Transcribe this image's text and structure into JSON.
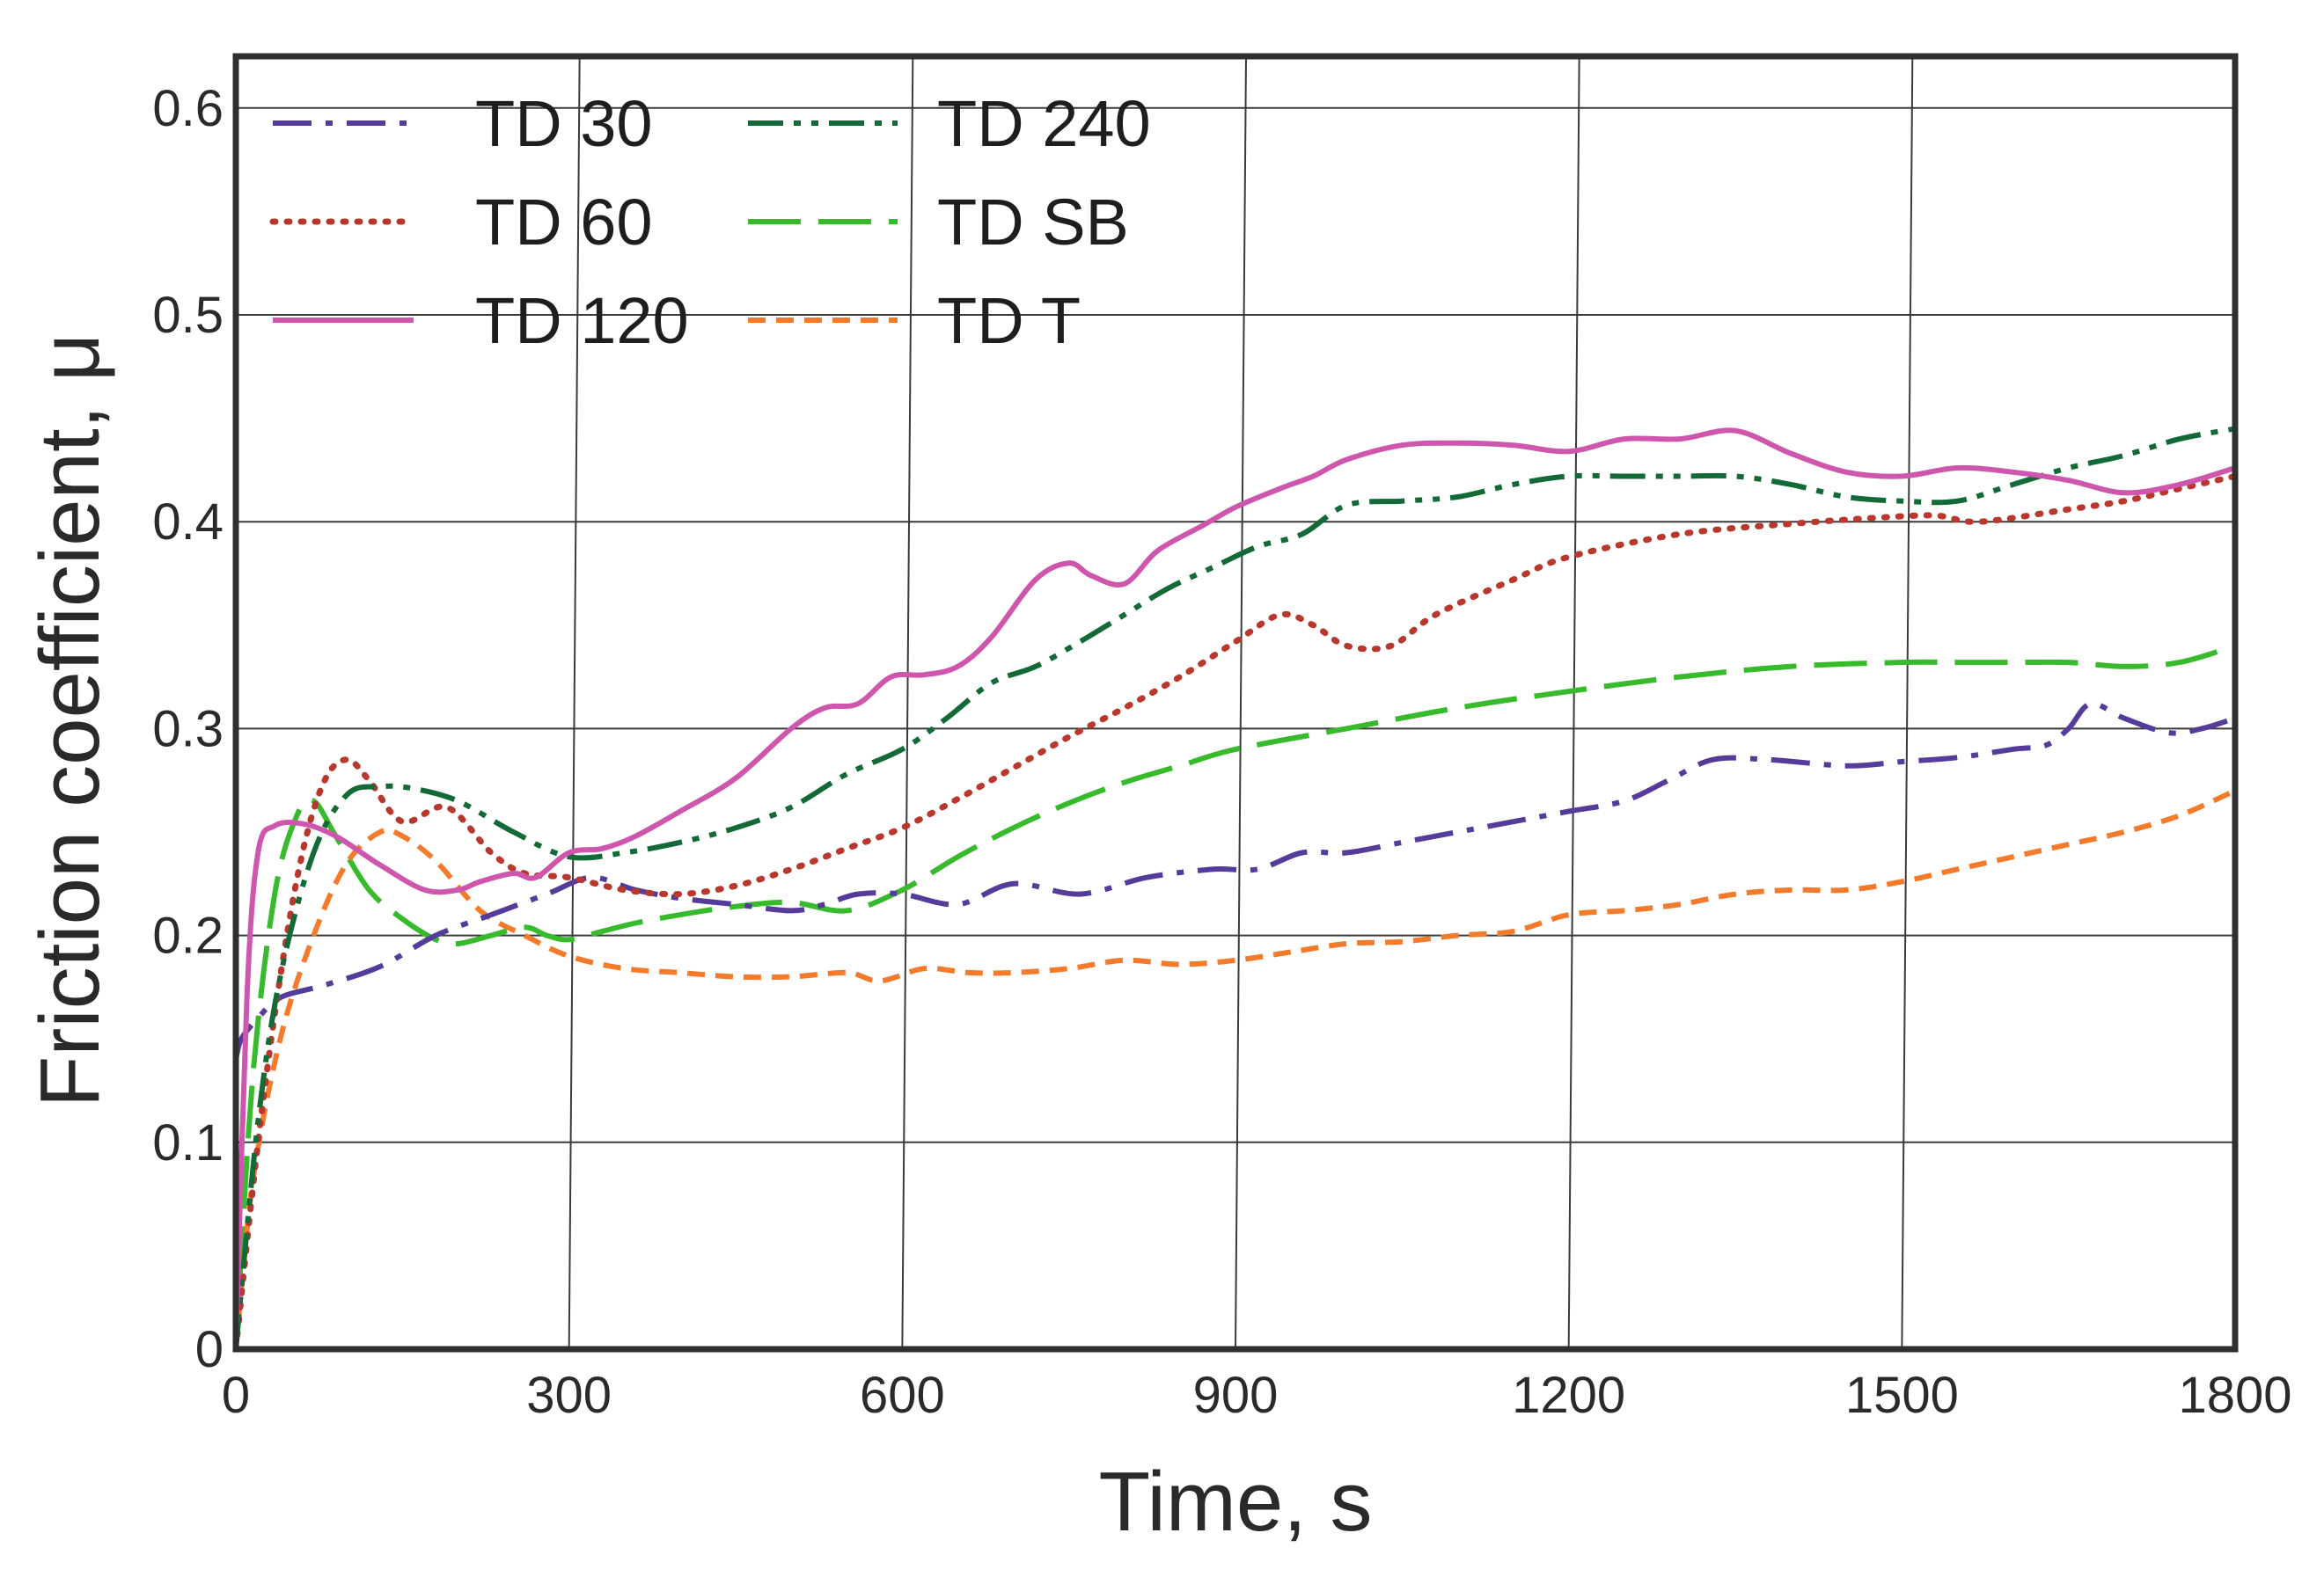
{
  "chart_data": {
    "type": "line",
    "title": "",
    "xlabel": "Time, s",
    "ylabel": "Friction coefficient, μ",
    "xlim": [
      0,
      1800
    ],
    "ylim": [
      0,
      0.625
    ],
    "xticks": [
      0,
      300,
      600,
      900,
      1200,
      1500,
      1800
    ],
    "yticks": [
      0,
      0.1,
      0.2,
      0.3,
      0.4,
      0.5,
      0.6
    ],
    "xtick_labels": [
      "0",
      "300",
      "600",
      "900",
      "1200",
      "1500",
      "1800"
    ],
    "ytick_labels": [
      "0",
      "0.1",
      "0.2",
      "0.3",
      "0.4",
      "0.5",
      "0.6"
    ],
    "grid": true,
    "legend_position": "top-left",
    "series": [
      {
        "name": "TD 30",
        "color": "#553c9a",
        "style": "dashdot",
        "x": [
          0,
          5,
          20,
          40,
          80,
          130,
          180,
          230,
          280,
          320,
          360,
          400,
          450,
          500,
          530,
          560,
          600,
          650,
          700,
          760,
          820,
          880,
          920,
          960,
          1000,
          1050,
          1100,
          1150,
          1200,
          1250,
          1290,
          1330,
          1380,
          1450,
          1500,
          1550,
          1600,
          1630,
          1650,
          1670,
          1700,
          1740,
          1770,
          1800
        ],
        "y": [
          0.14,
          0.15,
          0.16,
          0.17,
          0.176,
          0.185,
          0.2,
          0.21,
          0.22,
          0.228,
          0.222,
          0.218,
          0.215,
          0.212,
          0.215,
          0.22,
          0.22,
          0.215,
          0.225,
          0.22,
          0.228,
          0.232,
          0.232,
          0.24,
          0.24,
          0.245,
          0.25,
          0.255,
          0.26,
          0.265,
          0.275,
          0.285,
          0.285,
          0.282,
          0.284,
          0.286,
          0.29,
          0.292,
          0.3,
          0.312,
          0.305,
          0.298,
          0.3,
          0.305
        ]
      },
      {
        "name": "TD 60",
        "color": "#b8382e",
        "style": "dotted",
        "x": [
          0,
          20,
          40,
          60,
          80,
          100,
          120,
          150,
          190,
          230,
          260,
          300,
          350,
          400,
          450,
          500,
          550,
          600,
          650,
          700,
          750,
          800,
          850,
          900,
          940,
          970,
          1000,
          1040,
          1080,
          1150,
          1200,
          1300,
          1400,
          1480,
          1530,
          1570,
          1650,
          1700,
          1750,
          1800
        ],
        "y": [
          0,
          0.1,
          0.18,
          0.24,
          0.275,
          0.285,
          0.275,
          0.255,
          0.262,
          0.24,
          0.23,
          0.228,
          0.222,
          0.22,
          0.224,
          0.232,
          0.242,
          0.252,
          0.266,
          0.281,
          0.296,
          0.31,
          0.325,
          0.342,
          0.355,
          0.35,
          0.34,
          0.34,
          0.355,
          0.372,
          0.383,
          0.394,
          0.399,
          0.402,
          0.403,
          0.4,
          0.406,
          0.41,
          0.416,
          0.422
        ]
      },
      {
        "name": "TD 120",
        "color": "#cf56ad",
        "style": "solid",
        "x": [
          0,
          10,
          20,
          35,
          60,
          90,
          130,
          170,
          200,
          220,
          250,
          270,
          300,
          330,
          360,
          400,
          450,
          500,
          530,
          560,
          590,
          620,
          650,
          680,
          720,
          750,
          770,
          800,
          830,
          870,
          900,
          940,
          970,
          1000,
          1050,
          1100,
          1150,
          1200,
          1250,
          1300,
          1350,
          1400,
          1450,
          1500,
          1550,
          1600,
          1650,
          1700,
          1750,
          1800
        ],
        "y": [
          0,
          0.17,
          0.24,
          0.253,
          0.254,
          0.248,
          0.234,
          0.222,
          0.222,
          0.226,
          0.23,
          0.228,
          0.24,
          0.242,
          0.248,
          0.26,
          0.276,
          0.3,
          0.31,
          0.312,
          0.325,
          0.326,
          0.33,
          0.344,
          0.372,
          0.38,
          0.374,
          0.37,
          0.386,
          0.398,
          0.407,
          0.416,
          0.422,
          0.43,
          0.437,
          0.438,
          0.437,
          0.434,
          0.44,
          0.44,
          0.444,
          0.433,
          0.424,
          0.422,
          0.426,
          0.424,
          0.42,
          0.414,
          0.418,
          0.426
        ]
      },
      {
        "name": "TD 240",
        "color": "#136a37",
        "style": "dashdotdot",
        "x": [
          0,
          20,
          40,
          70,
          100,
          130,
          160,
          200,
          250,
          300,
          350,
          400,
          450,
          500,
          550,
          600,
          640,
          680,
          720,
          760,
          800,
          840,
          880,
          920,
          960,
          1000,
          1050,
          1100,
          1150,
          1200,
          1250,
          1300,
          1350,
          1400,
          1450,
          1500,
          1550,
          1600,
          1650,
          1700,
          1750,
          1800
        ],
        "y": [
          0,
          0.11,
          0.18,
          0.24,
          0.268,
          0.272,
          0.271,
          0.265,
          0.25,
          0.238,
          0.24,
          0.245,
          0.252,
          0.262,
          0.278,
          0.29,
          0.305,
          0.322,
          0.33,
          0.342,
          0.355,
          0.368,
          0.378,
          0.388,
          0.394,
          0.408,
          0.41,
          0.412,
          0.418,
          0.422,
          0.422,
          0.422,
          0.422,
          0.418,
          0.412,
          0.41,
          0.41,
          0.418,
          0.426,
          0.432,
          0.44,
          0.445
        ]
      },
      {
        "name": "TD SB",
        "color": "#37bb2c",
        "style": "longdash",
        "x": [
          0,
          15,
          35,
          55,
          70,
          90,
          120,
          150,
          180,
          200,
          230,
          260,
          280,
          300,
          330,
          360,
          400,
          450,
          500,
          550,
          600,
          650,
          700,
          750,
          800,
          850,
          900,
          1000,
          1100,
          1200,
          1300,
          1400,
          1500,
          1550,
          1600,
          1650,
          1700,
          1750,
          1800
        ],
        "y": [
          0,
          0.13,
          0.22,
          0.258,
          0.265,
          0.248,
          0.222,
          0.208,
          0.198,
          0.196,
          0.2,
          0.204,
          0.2,
          0.198,
          0.202,
          0.206,
          0.21,
          0.214,
          0.216,
          0.212,
          0.222,
          0.238,
          0.252,
          0.264,
          0.274,
          0.282,
          0.29,
          0.3,
          0.31,
          0.318,
          0.325,
          0.33,
          0.332,
          0.332,
          0.332,
          0.332,
          0.33,
          0.332,
          0.34
        ]
      },
      {
        "name": "TD T",
        "color": "#f47b2b",
        "style": "shortdash",
        "x": [
          0,
          15,
          40,
          70,
          100,
          130,
          150,
          180,
          220,
          260,
          300,
          350,
          400,
          450,
          500,
          550,
          580,
          620,
          660,
          700,
          750,
          800,
          850,
          900,
          950,
          1000,
          1050,
          1100,
          1150,
          1200,
          1250,
          1300,
          1350,
          1400,
          1450,
          1500,
          1550,
          1600,
          1650,
          1700,
          1750,
          1800
        ],
        "y": [
          0,
          0.08,
          0.15,
          0.2,
          0.235,
          0.25,
          0.248,
          0.236,
          0.212,
          0.2,
          0.19,
          0.184,
          0.182,
          0.18,
          0.18,
          0.182,
          0.178,
          0.184,
          0.182,
          0.182,
          0.184,
          0.188,
          0.186,
          0.188,
          0.192,
          0.196,
          0.197,
          0.2,
          0.202,
          0.21,
          0.212,
          0.215,
          0.22,
          0.222,
          0.222,
          0.226,
          0.232,
          0.238,
          0.244,
          0.25,
          0.258,
          0.27
        ]
      }
    ]
  }
}
